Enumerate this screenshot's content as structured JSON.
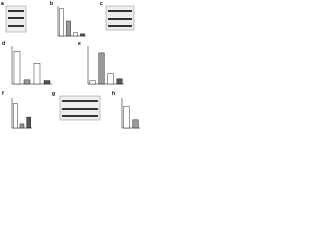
{
  "panels": [
    {
      "label": "a"
    },
    {
      "label": "b"
    },
    {
      "label": "c"
    },
    {
      "label": "d"
    },
    {
      "label": "e"
    },
    {
      "label": "f"
    },
    {
      "label": "g"
    },
    {
      "label": "h"
    }
  ],
  "chart_data": [
    {
      "type": "bar",
      "values": [
        1,
        0.55,
        0.12,
        0.08
      ],
      "colors": [
        "#ffffff",
        "#999999",
        "#ffffff",
        "#555555"
      ],
      "ylim": [
        0,
        1.1
      ]
    },
    {
      "type": "bar",
      "values": [
        0.95,
        0.12,
        0.6,
        0.1
      ],
      "colors": [
        "#ffffff",
        "#999999",
        "#ffffff",
        "#555555"
      ],
      "ylim": [
        0,
        1.1
      ]
    },
    {
      "type": "bar",
      "values": [
        0.1,
        0.9,
        0.3,
        0.15
      ],
      "colors": [
        "#ffffff",
        "#999999",
        "#ffffff",
        "#555555"
      ],
      "ylim": [
        0,
        1.1
      ]
    },
    {
      "type": "bar",
      "values": [
        0.9,
        0.15,
        0.4
      ],
      "colors": [
        "#ffffff",
        "#999999",
        "#555555"
      ],
      "ylim": [
        0,
        1.1
      ]
    },
    {
      "type": "bar",
      "values": [
        0.8,
        0.3
      ],
      "colors": [
        "#ffffff",
        "#999999"
      ],
      "ylim": [
        0,
        1.1
      ]
    }
  ]
}
